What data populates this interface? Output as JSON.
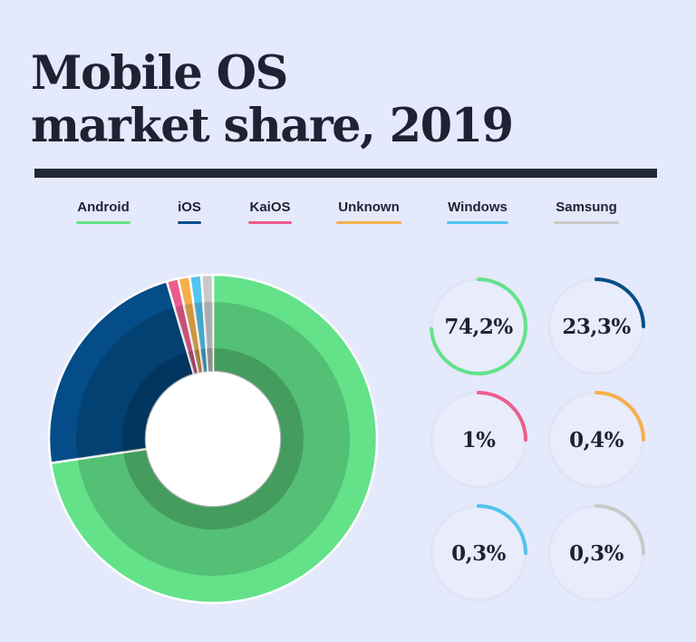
{
  "title": {
    "line1": "Mobile OS",
    "line2": "market share, 2019"
  },
  "legend": [
    {
      "label": "Android",
      "color": "#63e28a"
    },
    {
      "label": "iOS",
      "color": "#044d88"
    },
    {
      "label": "KaiOS",
      "color": "#ec5d8d"
    },
    {
      "label": "Unknown",
      "color": "#f5b04b"
    },
    {
      "label": "Windows",
      "color": "#52c4ee"
    },
    {
      "label": "Samsung",
      "color": "#c9c9c9"
    }
  ],
  "chart_data": {
    "type": "pie",
    "title": "Mobile OS market share, 2019",
    "categories": [
      "Android",
      "iOS",
      "KaiOS",
      "Unknown",
      "Windows",
      "Samsung"
    ],
    "values": [
      74.2,
      23.3,
      1,
      0.4,
      0.3,
      0.3
    ],
    "colors": [
      "#63e28a",
      "#044d88",
      "#ec5d8d",
      "#f5b04b",
      "#52c4ee",
      "#c9c9c9"
    ],
    "value_labels": [
      "74,2%",
      "23,3%",
      "1%",
      "0,4%",
      "0,3%",
      "0,3%"
    ]
  }
}
